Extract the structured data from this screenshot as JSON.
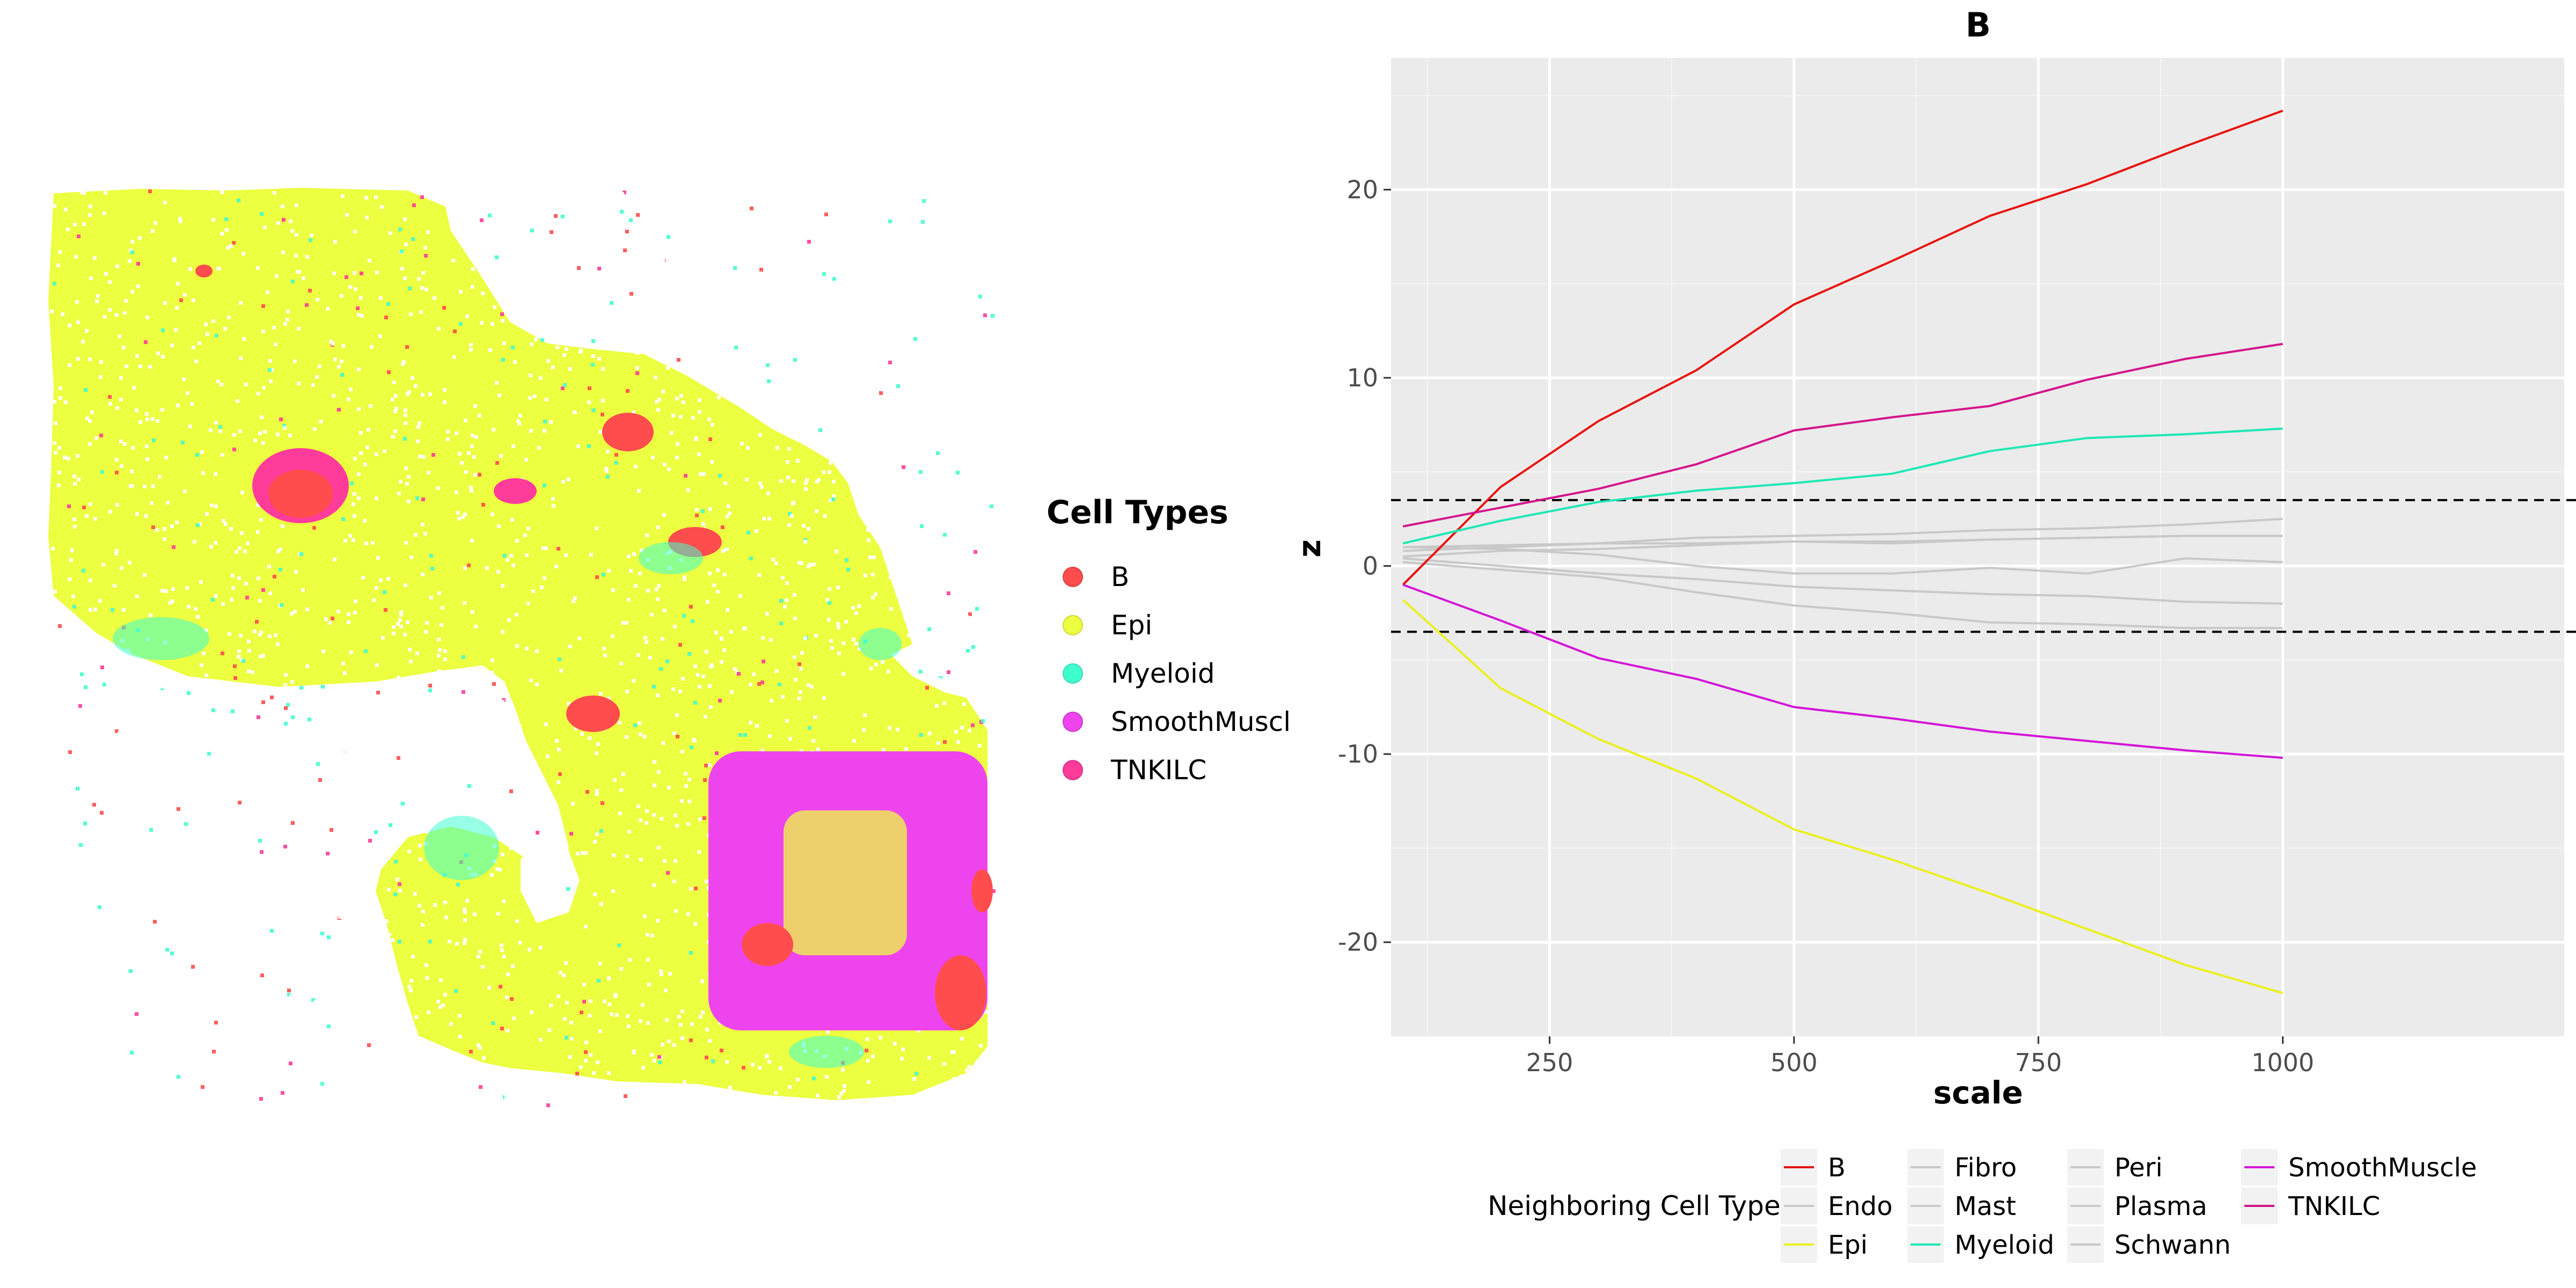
{
  "spatial_plot": {
    "legend_title": "Cell Types",
    "legend_items": [
      {
        "label": "B",
        "color": "#ff4d4d"
      },
      {
        "label": "Epi",
        "color": "#ecff40"
      },
      {
        "label": "Myeloid",
        "color": "#40ffcf"
      },
      {
        "label": "SmoothMuscl",
        "color": "#ee44ee"
      },
      {
        "label": "TNKILC",
        "color": "#ff3c9a"
      }
    ]
  },
  "chart_data": {
    "type": "line",
    "title": "B",
    "xlabel": "scale",
    "ylabel": "z",
    "xlim": [
      0,
      1200
    ],
    "ylim": [
      -25,
      27
    ],
    "x_ticks": [
      250,
      500,
      750,
      1000
    ],
    "y_ticks": [
      -20,
      -10,
      0,
      10,
      20
    ],
    "grid": true,
    "threshold_lines": [
      3.5,
      -3.5
    ],
    "legend_title": "Neighboring Cell Type",
    "legend_position": "bottom",
    "x": [
      100,
      200,
      300,
      400,
      500,
      600,
      700,
      800,
      900,
      1000
    ],
    "series": [
      {
        "name": "B",
        "color": "#e8120c",
        "values": [
          -1.0,
          4.2,
          7.7,
          10.4,
          13.9,
          16.2,
          18.6,
          20.3,
          22.3,
          24.2
        ]
      },
      {
        "name": "Endo",
        "color": "#c8c8c8",
        "values": [
          0.5,
          0.8,
          0.9,
          1.1,
          1.3,
          1.2,
          1.4,
          1.5,
          1.6,
          1.6
        ]
      },
      {
        "name": "Epi",
        "color": "#eaf01a",
        "values": [
          -1.8,
          -6.5,
          -9.2,
          -11.3,
          -14.0,
          -15.6,
          -17.4,
          -19.3,
          -21.2,
          -22.7
        ]
      },
      {
        "name": "Fibro",
        "color": "#c8c8c8",
        "values": [
          1.0,
          0.9,
          0.6,
          0.0,
          -0.4,
          -0.4,
          -0.1,
          -0.4,
          0.4,
          0.2
        ]
      },
      {
        "name": "Mast",
        "color": "#c8c8c8",
        "values": [
          0.8,
          1.0,
          1.2,
          1.5,
          1.6,
          1.7,
          1.9,
          2.0,
          2.2,
          2.5
        ]
      },
      {
        "name": "Myeloid",
        "color": "#1ee8b4",
        "values": [
          1.2,
          2.4,
          3.4,
          4.0,
          4.4,
          4.9,
          6.1,
          6.8,
          7.0,
          7.3
        ]
      },
      {
        "name": "Peri",
        "color": "#c8c8c8",
        "values": [
          0.2,
          -0.2,
          -0.6,
          -1.4,
          -2.1,
          -2.5,
          -3.0,
          -3.1,
          -3.3,
          -3.3
        ]
      },
      {
        "name": "Plasma",
        "color": "#c8c8c8",
        "values": [
          0.4,
          0.0,
          -0.4,
          -0.7,
          -1.1,
          -1.3,
          -1.5,
          -1.6,
          -1.9,
          -2.0
        ]
      },
      {
        "name": "Schwann",
        "color": "#c8c8c8",
        "values": [
          1.0,
          1.1,
          1.2,
          1.2,
          1.3,
          1.3,
          1.4,
          1.5,
          1.6,
          1.6
        ]
      },
      {
        "name": "SmoothMuscle",
        "color": "#d414d8",
        "values": [
          -1.0,
          -2.9,
          -4.9,
          -6.0,
          -7.5,
          -8.1,
          -8.8,
          -9.3,
          -9.8,
          -10.2
        ]
      },
      {
        "name": "TNKILC",
        "color": "#d4148c",
        "values": [
          2.1,
          3.1,
          4.1,
          5.4,
          7.2,
          7.9,
          8.5,
          9.9,
          11.0,
          11.8
        ]
      }
    ]
  }
}
